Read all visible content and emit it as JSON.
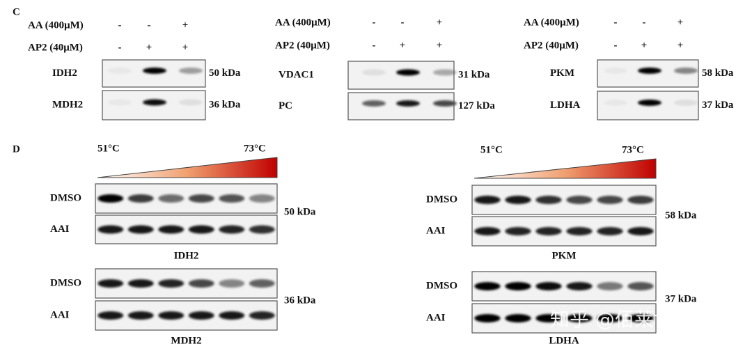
{
  "panel_c": {
    "label": "C",
    "groups": [
      {
        "treatments": [
          {
            "name": "AA (400μM)",
            "signs": [
              "-",
              "-",
              "+"
            ]
          },
          {
            "name": "AP2 (40μM)",
            "signs": [
              "-",
              "+",
              "+"
            ]
          }
        ],
        "blots": [
          {
            "protein": "IDH2",
            "size": "50 kDa"
          },
          {
            "protein": "MDH2",
            "size": "36 kDa"
          }
        ]
      },
      {
        "treatments": [
          {
            "name": "AA (400μM)",
            "signs": [
              "-",
              "-",
              "+"
            ]
          },
          {
            "name": "AP2 (40μM)",
            "signs": [
              "-",
              "+",
              "+"
            ]
          }
        ],
        "blots": [
          {
            "protein": "VDAC1",
            "size": "31 kDa"
          },
          {
            "protein": "PC",
            "size": "127 kDa"
          }
        ]
      },
      {
        "treatments": [
          {
            "name": "AA (400μM)",
            "signs": [
              "-",
              "-",
              "+"
            ]
          },
          {
            "name": "AP2 (40μM)",
            "signs": [
              "-",
              "+",
              "+"
            ]
          }
        ],
        "blots": [
          {
            "protein": "PKM",
            "size": "58 kDa"
          },
          {
            "protein": "LDHA",
            "size": "37 kDa"
          }
        ]
      }
    ]
  },
  "panel_d": {
    "label": "D",
    "groups": [
      {
        "temp_low": "51°C",
        "temp_high": "73°C",
        "blots": [
          {
            "protein": "IDH2",
            "size": "50 kDa",
            "rows": [
              "DMSO",
              "AAI"
            ]
          },
          {
            "protein": "MDH2",
            "size": "36 kDa",
            "rows": [
              "DMSO",
              "AAI"
            ]
          }
        ]
      },
      {
        "temp_low": "51°C",
        "temp_high": "73°C",
        "blots": [
          {
            "protein": "PKM",
            "size": "58 kDa",
            "rows": [
              "DMSO",
              "AAI"
            ]
          },
          {
            "protein": "LDHA",
            "size": "37 kDa",
            "rows": [
              "DMSO",
              "AAI"
            ]
          }
        ]
      }
    ]
  },
  "watermark": "知乎 @佰莱博生物"
}
